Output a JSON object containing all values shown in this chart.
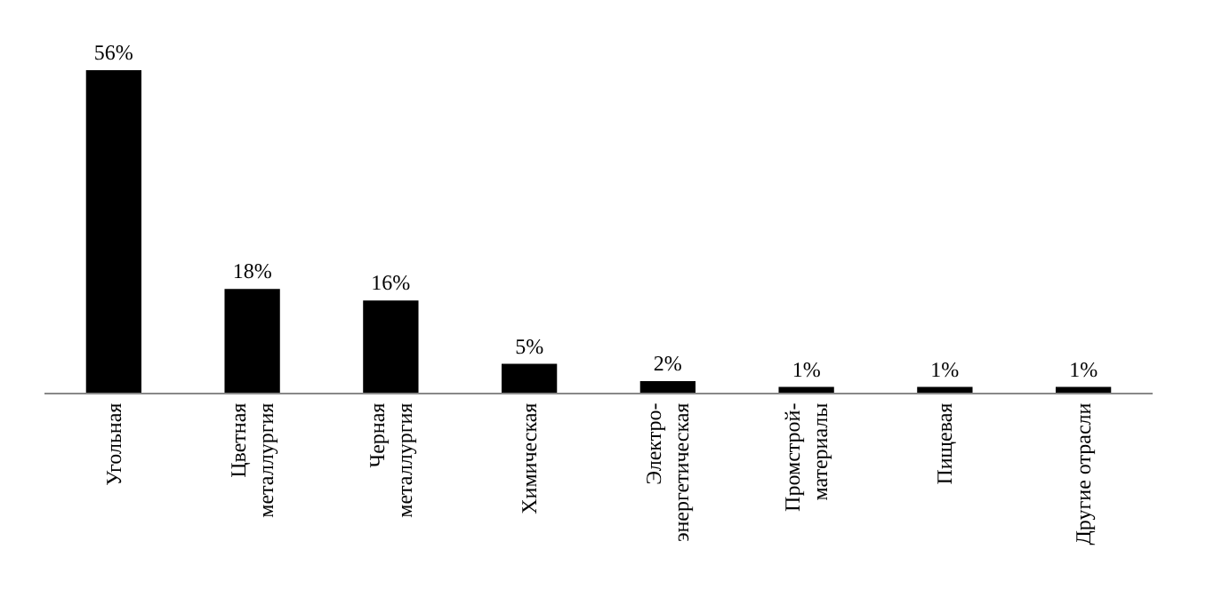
{
  "chart_data": {
    "type": "bar",
    "categories": [
      "Угольная",
      "Цветная\nметаллургия",
      "Черная\nметаллургия",
      "Химическая",
      "Электро-\nэнергетическая",
      "Промстрой-\nматериалы",
      "Пищевая",
      "Другие отрасли"
    ],
    "values": [
      56,
      18,
      16,
      5,
      2,
      1,
      1,
      1
    ],
    "value_labels": [
      "56%",
      "18%",
      "16%",
      "5%",
      "2%",
      "1%",
      "1%",
      "1%"
    ],
    "color": "#000000"
  }
}
